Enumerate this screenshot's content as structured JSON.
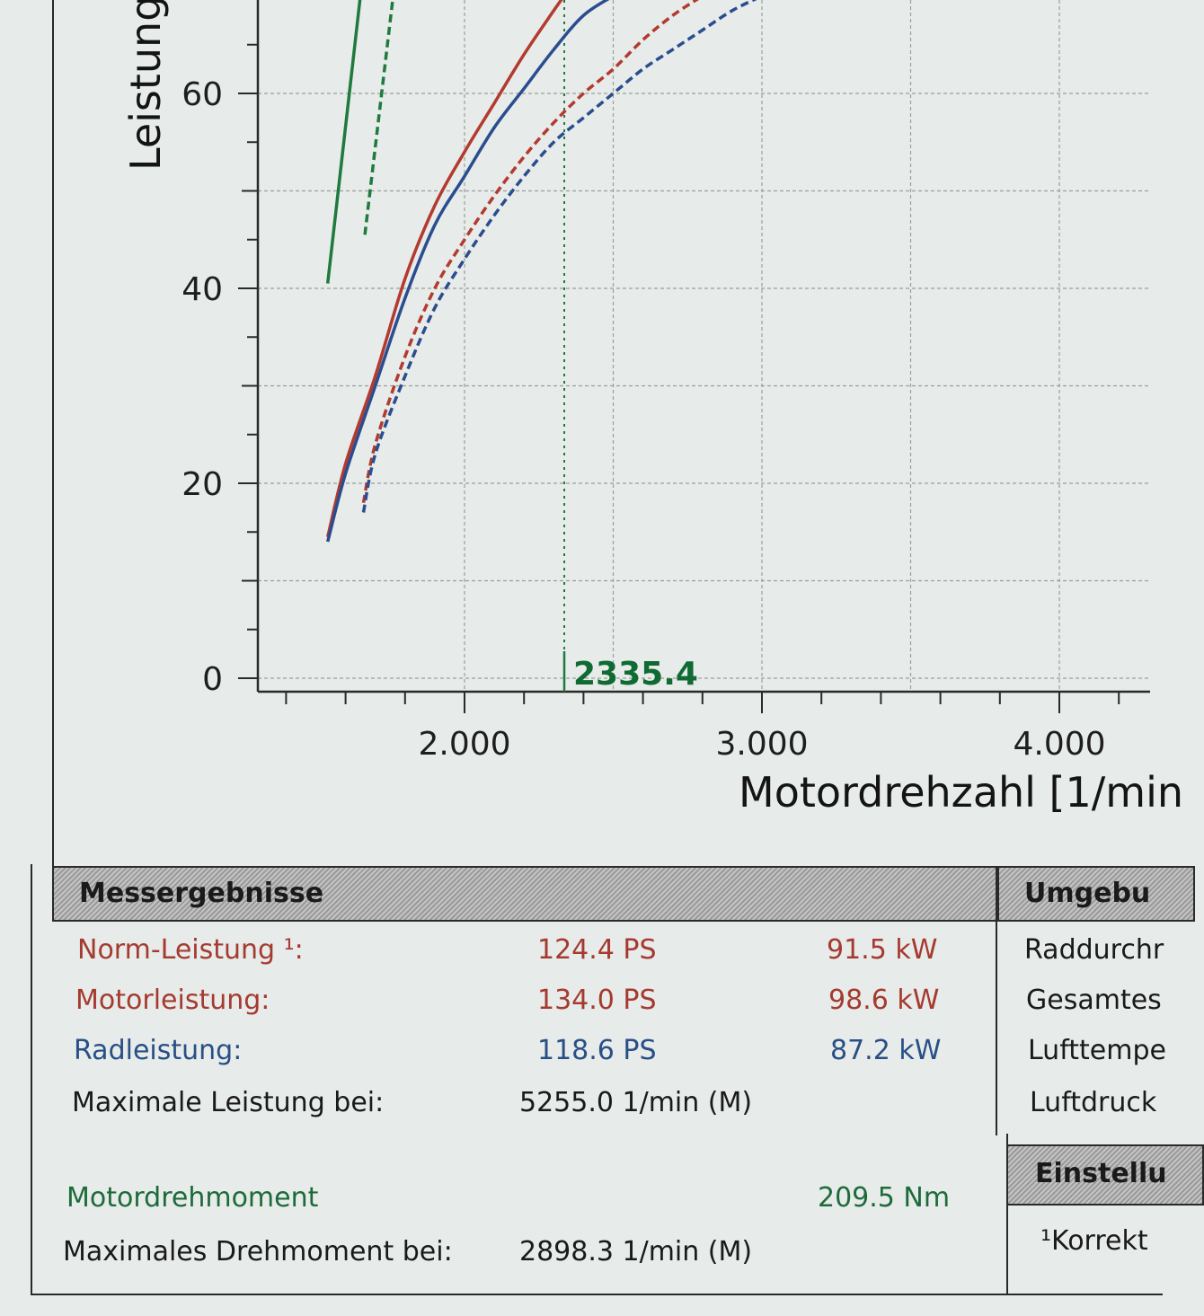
{
  "chart_data": {
    "type": "line",
    "ylabel": "Leistung",
    "xlabel": "Motordrehzahl [1/min",
    "y_ticks": [
      "0",
      "20",
      "40",
      "60"
    ],
    "x_ticks": [
      "2.000",
      "3.000",
      "4.000"
    ],
    "y_tick_values": [
      0,
      20,
      40,
      60
    ],
    "x_tick_values": [
      2000,
      3000,
      4000
    ],
    "xlim": [
      1300,
      4300
    ],
    "ylim": [
      -1.5,
      70
    ],
    "grid": true,
    "marker": {
      "label": "2335.4",
      "x": 2335.4
    },
    "series": [
      {
        "color": "#b33a2f",
        "style": "solid",
        "x": [
          1540,
          1600,
          1700,
          1800,
          1900,
          2000,
          2100,
          2200,
          2300,
          2335
        ],
        "y": [
          14.5,
          22,
          31,
          41,
          48.5,
          54,
          59,
          64,
          68.5,
          70
        ]
      },
      {
        "color": "#2a4d8f",
        "style": "solid",
        "x": [
          1540,
          1600,
          1700,
          1800,
          1900,
          2000,
          2100,
          2200,
          2300,
          2400,
          2500
        ],
        "y": [
          14,
          21,
          30,
          39,
          46.5,
          51.5,
          56.5,
          60.5,
          64.5,
          68,
          70
        ]
      },
      {
        "color": "#b33a2f",
        "style": "dashed",
        "x": [
          1660,
          1700,
          1800,
          1900,
          2000,
          2100,
          2200,
          2300,
          2400,
          2500,
          2600,
          2700,
          2800
        ],
        "y": [
          18,
          24,
          33,
          40,
          45,
          49.5,
          53.5,
          57,
          60,
          62.5,
          65.5,
          68,
          70
        ]
      },
      {
        "color": "#2a4d8f",
        "style": "dashed",
        "x": [
          1660,
          1700,
          1800,
          1900,
          2000,
          2100,
          2200,
          2300,
          2400,
          2500,
          2600,
          2700,
          2800,
          2900,
          3000
        ],
        "y": [
          17,
          23,
          31,
          38,
          43,
          47.5,
          51.5,
          55,
          57.5,
          60,
          62.5,
          64.5,
          66.5,
          68.5,
          70
        ]
      },
      {
        "color": "#1f7a3e",
        "style": "solid",
        "x": [
          1540,
          1650
        ],
        "y": [
          40.5,
          70
        ]
      },
      {
        "color": "#1f7a3e",
        "style": "dashed",
        "x": [
          1665,
          1760
        ],
        "y": [
          45.5,
          70
        ]
      }
    ]
  },
  "results": {
    "header": "Messergebnisse",
    "rows": [
      {
        "label": "Norm-Leistung ¹:",
        "v1": "124.4 PS",
        "v2": "91.5 kW",
        "color": "red"
      },
      {
        "label": "Motorleistung:",
        "v1": "134.0 PS",
        "v2": "98.6 kW",
        "color": "red"
      },
      {
        "label": "Radleistung:",
        "v1": "118.6 PS",
        "v2": "87.2 kW",
        "color": "blue"
      },
      {
        "label": "Maximale Leistung bei:",
        "v1": "5255.0 1/min (M)",
        "v2": "",
        "color": "black"
      },
      {
        "label": "Motordrehmoment",
        "v1": "",
        "v2": "209.5 Nm",
        "color": "green"
      },
      {
        "label": "Maximales Drehmoment bei:",
        "v1": "2898.3 1/min (M)",
        "v2": "",
        "color": "black"
      }
    ]
  },
  "side_panel": {
    "header_top": "Umgebu",
    "labels": [
      "Raddurchr",
      "Gesamtes",
      "Lufttempe",
      "Luftdruck"
    ],
    "header_bottom": "Einstellu",
    "footnote": "¹Korrekt"
  }
}
